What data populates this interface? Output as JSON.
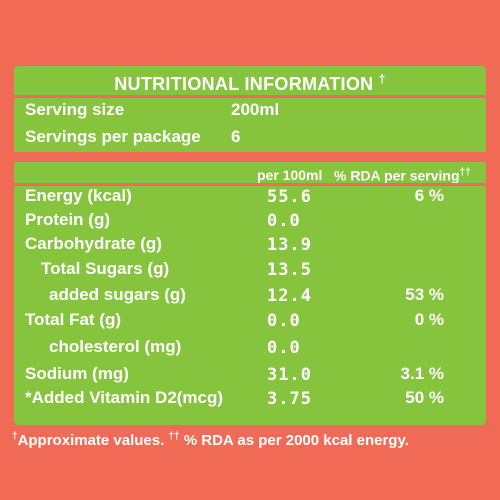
{
  "title": "NUTRITIONAL INFORMATION",
  "title_mark": "†",
  "serving": {
    "size_label": "Serving size",
    "size_value": "200ml",
    "per_package_label": "Servings per package",
    "per_package_value": "6"
  },
  "columns": {
    "per100": "per 100ml",
    "rda": "% RDA per serving",
    "rda_mark": "††"
  },
  "rows": [
    {
      "name": "Energy (kcal)",
      "value": "55.6",
      "rda": "6 %"
    },
    {
      "name": "Protein (g)",
      "value": "0.0",
      "rda": ""
    },
    {
      "name": "Carbohydrate (g)",
      "value": "13.9",
      "rda": ""
    },
    {
      "name": "Total Sugars (g)",
      "value": "13.5",
      "rda": ""
    },
    {
      "name": "added sugars (g)",
      "value": "12.4",
      "rda": "53 %"
    },
    {
      "name": "Total Fat (g)",
      "value": "0.0",
      "rda": "0 %"
    },
    {
      "name": "cholesterol (mg)",
      "value": "0.0",
      "rda": ""
    },
    {
      "name": "Sodium (mg)",
      "value": "31.0",
      "rda": "3.1 %"
    },
    {
      "name": "*Added Vitamin D2(mcg)",
      "value": "3.75",
      "rda": "50 %"
    }
  ],
  "footer": {
    "mark1": "†",
    "text1": "Approximate values.",
    "mark2": "††",
    "text2": "% RDA as per 2000 kcal energy."
  },
  "colors": {
    "panel": "#86c43d",
    "background": "#f16a55",
    "text": "#ffffff"
  }
}
